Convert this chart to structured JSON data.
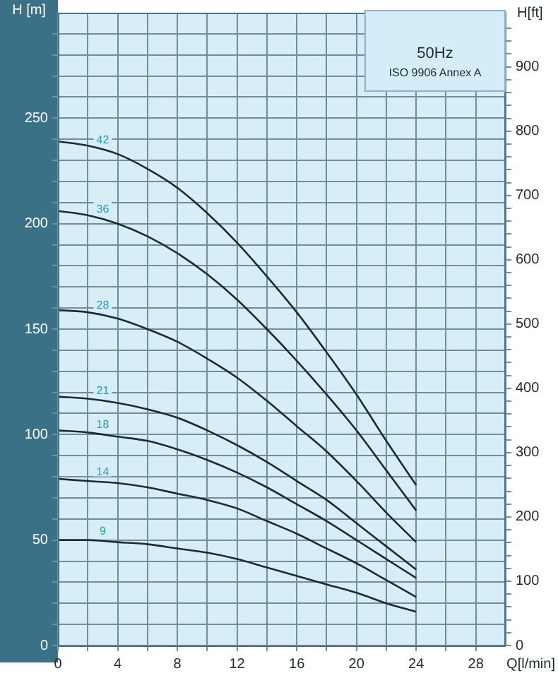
{
  "chart_data": {
    "type": "line",
    "xlabel": "Q[l/min]",
    "ylabel": "H [m]",
    "y2label": "H[ft]",
    "annotations": [
      "50Hz",
      "ISO 9906 Annex A"
    ],
    "x": [
      0,
      2,
      4,
      6,
      8,
      10,
      12,
      14,
      16,
      18,
      20,
      22,
      24
    ],
    "xlim": [
      0,
      30
    ],
    "xticks": [
      0,
      {
        "value": 2,
        "label": null
      },
      4,
      {
        "value": 6,
        "label": null
      },
      8,
      {
        "value": 10,
        "label": null
      },
      12,
      {
        "value": 14,
        "label": null
      },
      16,
      {
        "value": 18,
        "label": null
      },
      20,
      {
        "value": 22,
        "label": null
      },
      24,
      {
        "value": 26,
        "label": null
      },
      28
    ],
    "ylim": [
      0,
      300
    ],
    "yticks": [
      0,
      {
        "value": 10,
        "label": null
      },
      {
        "value": 20,
        "label": null
      },
      {
        "value": 30,
        "label": null
      },
      {
        "value": 40,
        "label": null
      },
      50,
      {
        "value": 60,
        "label": null
      },
      {
        "value": 70,
        "label": null
      },
      {
        "value": 80,
        "label": null
      },
      {
        "value": 90,
        "label": null
      },
      100,
      {
        "value": 110,
        "label": null
      },
      {
        "value": 120,
        "label": null
      },
      {
        "value": 130,
        "label": null
      },
      {
        "value": 140,
        "label": null
      },
      150,
      {
        "value": 160,
        "label": null
      },
      {
        "value": 170,
        "label": null
      },
      {
        "value": 180,
        "label": null
      },
      {
        "value": 190,
        "label": null
      },
      200,
      {
        "value": 210,
        "label": null
      },
      {
        "value": 220,
        "label": null
      },
      {
        "value": 230,
        "label": null
      },
      {
        "value": 240,
        "label": null
      },
      250,
      {
        "value": 260,
        "label": null
      },
      {
        "value": 270,
        "label": null
      },
      {
        "value": 280,
        "label": null
      },
      {
        "value": 290,
        "label": null
      }
    ],
    "y2lim": [
      0,
      984.25
    ],
    "y2ticks": [
      0,
      {
        "value": 20,
        "label": null
      },
      {
        "value": 40,
        "label": null
      },
      {
        "value": 60,
        "label": null
      },
      {
        "value": 80,
        "label": null
      },
      100,
      {
        "value": 120,
        "label": null
      },
      {
        "value": 140,
        "label": null
      },
      {
        "value": 160,
        "label": null
      },
      {
        "value": 180,
        "label": null
      },
      200,
      {
        "value": 220,
        "label": null
      },
      {
        "value": 240,
        "label": null
      },
      {
        "value": 260,
        "label": null
      },
      {
        "value": 280,
        "label": null
      },
      300,
      {
        "value": 320,
        "label": null
      },
      {
        "value": 340,
        "label": null
      },
      {
        "value": 360,
        "label": null
      },
      {
        "value": 380,
        "label": null
      },
      400,
      {
        "value": 420,
        "label": null
      },
      {
        "value": 440,
        "label": null
      },
      {
        "value": 460,
        "label": null
      },
      {
        "value": 480,
        "label": null
      },
      500,
      {
        "value": 520,
        "label": null
      },
      {
        "value": 540,
        "label": null
      },
      {
        "value": 560,
        "label": null
      },
      {
        "value": 580,
        "label": null
      },
      600,
      {
        "value": 620,
        "label": null
      },
      {
        "value": 640,
        "label": null
      },
      {
        "value": 660,
        "label": null
      },
      {
        "value": 680,
        "label": null
      },
      700,
      {
        "value": 720,
        "label": null
      },
      {
        "value": 740,
        "label": null
      },
      {
        "value": 760,
        "label": null
      },
      {
        "value": 780,
        "label": null
      },
      800,
      {
        "value": 820,
        "label": null
      },
      {
        "value": 840,
        "label": null
      },
      {
        "value": 860,
        "label": null
      },
      {
        "value": 880,
        "label": null
      },
      900,
      {
        "value": 920,
        "label": null
      },
      {
        "value": 940,
        "label": null
      },
      {
        "value": 960,
        "label": null
      }
    ],
    "grid": true,
    "series": [
      {
        "name": "42",
        "color": "#1b2b33",
        "values": [
          239,
          237,
          233,
          226,
          217,
          205,
          191,
          175,
          158,
          139,
          119,
          97,
          76
        ]
      },
      {
        "name": "36",
        "color": "#1b2b33",
        "values": [
          206,
          204,
          200,
          194,
          186,
          176,
          164,
          150,
          135,
          119,
          102,
          83,
          64
        ]
      },
      {
        "name": "28",
        "color": "#1b2b33",
        "values": [
          159,
          158,
          155,
          150,
          144,
          136,
          127,
          116,
          104,
          92,
          78,
          63,
          49
        ]
      },
      {
        "name": "21",
        "color": "#1b2b33",
        "values": [
          118,
          117,
          115,
          112,
          108,
          102,
          95,
          87,
          78,
          69,
          58,
          47,
          36
        ]
      },
      {
        "name": "18",
        "color": "#1b2b33",
        "values": [
          102,
          101,
          99,
          97,
          93,
          88,
          82,
          75,
          67,
          59,
          50,
          41,
          32
        ]
      },
      {
        "name": "14",
        "color": "#1b2b33",
        "values": [
          79,
          78,
          77,
          75,
          72,
          69,
          65,
          59,
          53,
          46,
          39,
          31,
          23
        ]
      },
      {
        "name": "9",
        "color": "#1b2b33",
        "values": [
          50,
          50,
          49,
          48,
          46,
          44,
          41,
          37,
          33,
          29,
          25,
          20,
          16
        ]
      }
    ]
  }
}
